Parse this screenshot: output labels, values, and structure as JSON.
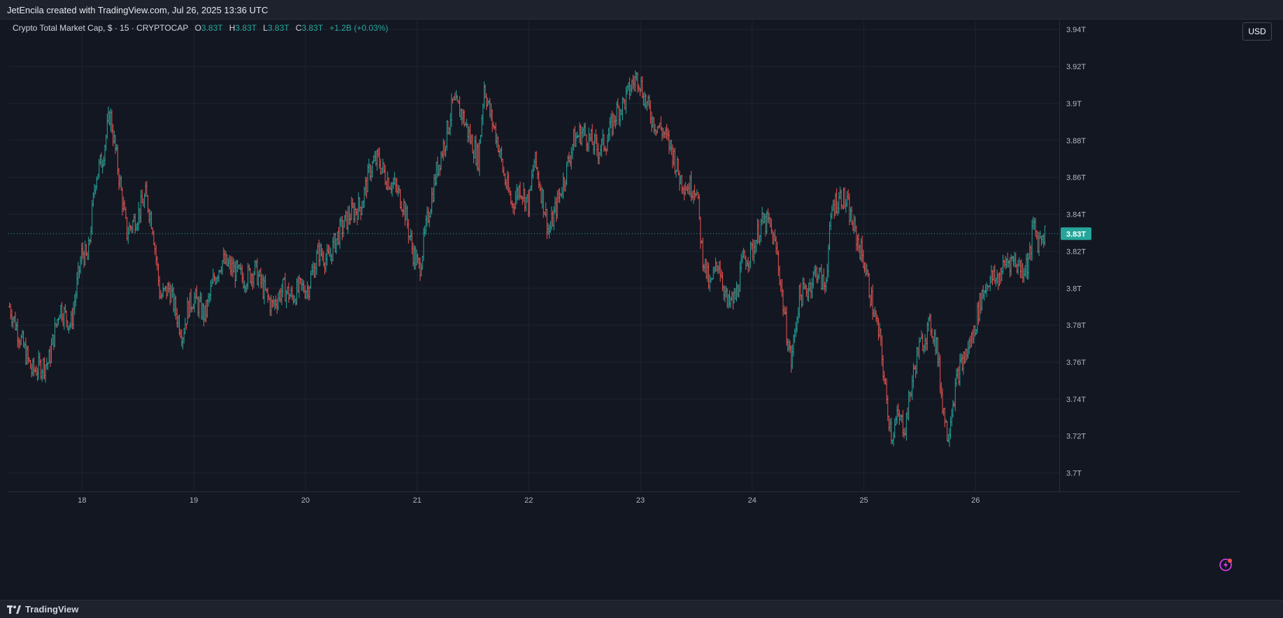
{
  "header": {
    "title": "JetEncila created with TradingView.com, Jul 26, 2025 13:36 UTC"
  },
  "legend": {
    "symbol": "Crypto Total Market Cap, $ · 15 · CRYPTOCAP",
    "open_label": "O",
    "open": "3.83T",
    "high_label": "H",
    "high": "3.83T",
    "low_label": "L",
    "low": "3.83T",
    "close_label": "C",
    "close": "3.83T",
    "change": "+1.2B (+0.03%)"
  },
  "currency_button": "USD",
  "footer": {
    "brand": "TradingView"
  },
  "colors": {
    "background": "#131722",
    "up": "#26a69a",
    "down": "#ef5350",
    "grid": "#1f2433",
    "price_line": "#26a69a"
  },
  "icons": {
    "brand": "tradingview-logo-icon",
    "alert": "lightning-icon"
  },
  "chart_data": {
    "type": "ohlc",
    "ylim": [
      3.69,
      3.945
    ],
    "y_ticks": [
      {
        "value": 3.94,
        "label": "3.94T"
      },
      {
        "value": 3.92,
        "label": "3.92T"
      },
      {
        "value": 3.9,
        "label": "3.9T"
      },
      {
        "value": 3.88,
        "label": "3.88T"
      },
      {
        "value": 3.86,
        "label": "3.86T"
      },
      {
        "value": 3.84,
        "label": "3.84T"
      },
      {
        "value": 3.82,
        "label": "3.82T"
      },
      {
        "value": 3.8,
        "label": "3.8T"
      },
      {
        "value": 3.78,
        "label": "3.78T"
      },
      {
        "value": 3.76,
        "label": "3.76T"
      },
      {
        "value": 3.74,
        "label": "3.74T"
      },
      {
        "value": 3.72,
        "label": "3.72T"
      },
      {
        "value": 3.7,
        "label": "3.7T"
      }
    ],
    "xlim": [
      17.34,
      26.75
    ],
    "x_ticks": [
      {
        "value": 18,
        "label": "18"
      },
      {
        "value": 19,
        "label": "19"
      },
      {
        "value": 20,
        "label": "20"
      },
      {
        "value": 21,
        "label": "21"
      },
      {
        "value": 22,
        "label": "22"
      },
      {
        "value": 23,
        "label": "23"
      },
      {
        "value": 24,
        "label": "24"
      },
      {
        "value": 25,
        "label": "25"
      },
      {
        "value": 26,
        "label": "26"
      }
    ],
    "current_price": {
      "value": 3.8295,
      "label": "3.83T"
    },
    "close_path": [
      [
        17.35,
        3.79
      ],
      [
        17.55,
        3.755
      ],
      [
        17.7,
        3.76
      ],
      [
        17.8,
        3.79
      ],
      [
        17.9,
        3.78
      ],
      [
        18.0,
        3.82
      ],
      [
        18.05,
        3.815
      ],
      [
        18.12,
        3.86
      ],
      [
        18.18,
        3.87
      ],
      [
        18.25,
        3.895
      ],
      [
        18.32,
        3.865
      ],
      [
        18.4,
        3.83
      ],
      [
        18.5,
        3.84
      ],
      [
        18.57,
        3.85
      ],
      [
        18.63,
        3.835
      ],
      [
        18.7,
        3.795
      ],
      [
        18.78,
        3.8
      ],
      [
        18.85,
        3.785
      ],
      [
        18.9,
        3.775
      ],
      [
        18.95,
        3.79
      ],
      [
        19.0,
        3.795
      ],
      [
        19.1,
        3.785
      ],
      [
        19.18,
        3.805
      ],
      [
        19.25,
        3.815
      ],
      [
        19.35,
        3.81
      ],
      [
        19.45,
        3.805
      ],
      [
        19.55,
        3.81
      ],
      [
        19.62,
        3.8
      ],
      [
        19.7,
        3.79
      ],
      [
        19.8,
        3.8
      ],
      [
        19.88,
        3.795
      ],
      [
        19.95,
        3.8
      ],
      [
        20.02,
        3.8
      ],
      [
        20.12,
        3.82
      ],
      [
        20.2,
        3.815
      ],
      [
        20.3,
        3.83
      ],
      [
        20.4,
        3.84
      ],
      [
        20.5,
        3.845
      ],
      [
        20.58,
        3.865
      ],
      [
        20.65,
        3.87
      ],
      [
        20.72,
        3.86
      ],
      [
        20.8,
        3.855
      ],
      [
        20.88,
        3.845
      ],
      [
        20.96,
        3.82
      ],
      [
        21.02,
        3.81
      ],
      [
        21.1,
        3.84
      ],
      [
        21.18,
        3.865
      ],
      [
        21.25,
        3.88
      ],
      [
        21.32,
        3.9
      ],
      [
        21.4,
        3.895
      ],
      [
        21.48,
        3.88
      ],
      [
        21.55,
        3.87
      ],
      [
        21.6,
        3.91
      ],
      [
        21.65,
        3.895
      ],
      [
        21.72,
        3.88
      ],
      [
        21.78,
        3.86
      ],
      [
        21.85,
        3.845
      ],
      [
        21.92,
        3.855
      ],
      [
        22.0,
        3.845
      ],
      [
        22.05,
        3.87
      ],
      [
        22.12,
        3.85
      ],
      [
        22.18,
        3.83
      ],
      [
        22.25,
        3.845
      ],
      [
        22.32,
        3.86
      ],
      [
        22.4,
        3.88
      ],
      [
        22.48,
        3.885
      ],
      [
        22.55,
        3.88
      ],
      [
        22.62,
        3.875
      ],
      [
        22.7,
        3.88
      ],
      [
        22.78,
        3.895
      ],
      [
        22.85,
        3.9
      ],
      [
        22.92,
        3.91
      ],
      [
        22.98,
        3.915
      ],
      [
        23.05,
        3.9
      ],
      [
        23.12,
        3.89
      ],
      [
        23.2,
        3.885
      ],
      [
        23.28,
        3.875
      ],
      [
        23.35,
        3.86
      ],
      [
        23.42,
        3.855
      ],
      [
        23.5,
        3.855
      ],
      [
        23.55,
        3.82
      ],
      [
        23.62,
        3.8
      ],
      [
        23.7,
        3.815
      ],
      [
        23.78,
        3.79
      ],
      [
        23.85,
        3.795
      ],
      [
        23.92,
        3.815
      ],
      [
        24.0,
        3.82
      ],
      [
        24.08,
        3.835
      ],
      [
        24.15,
        3.835
      ],
      [
        24.22,
        3.82
      ],
      [
        24.3,
        3.78
      ],
      [
        24.35,
        3.76
      ],
      [
        24.42,
        3.795
      ],
      [
        24.5,
        3.8
      ],
      [
        24.58,
        3.81
      ],
      [
        24.65,
        3.8
      ],
      [
        24.72,
        3.845
      ],
      [
        24.8,
        3.85
      ],
      [
        24.85,
        3.845
      ],
      [
        24.92,
        3.83
      ],
      [
        25.0,
        3.815
      ],
      [
        25.08,
        3.79
      ],
      [
        25.15,
        3.77
      ],
      [
        25.2,
        3.74
      ],
      [
        25.25,
        3.72
      ],
      [
        25.3,
        3.73
      ],
      [
        25.37,
        3.725
      ],
      [
        25.42,
        3.745
      ],
      [
        25.48,
        3.765
      ],
      [
        25.55,
        3.775
      ],
      [
        25.6,
        3.78
      ],
      [
        25.65,
        3.77
      ],
      [
        25.7,
        3.74
      ],
      [
        25.75,
        3.72
      ],
      [
        25.8,
        3.74
      ],
      [
        25.85,
        3.755
      ],
      [
        25.92,
        3.765
      ],
      [
        25.98,
        3.775
      ],
      [
        26.05,
        3.795
      ],
      [
        26.12,
        3.805
      ],
      [
        26.2,
        3.805
      ],
      [
        26.28,
        3.815
      ],
      [
        26.35,
        3.815
      ],
      [
        26.42,
        3.81
      ],
      [
        26.48,
        3.815
      ],
      [
        26.52,
        3.835
      ],
      [
        26.56,
        3.825
      ],
      [
        26.6,
        3.83
      ],
      [
        26.63,
        3.8295
      ]
    ]
  }
}
